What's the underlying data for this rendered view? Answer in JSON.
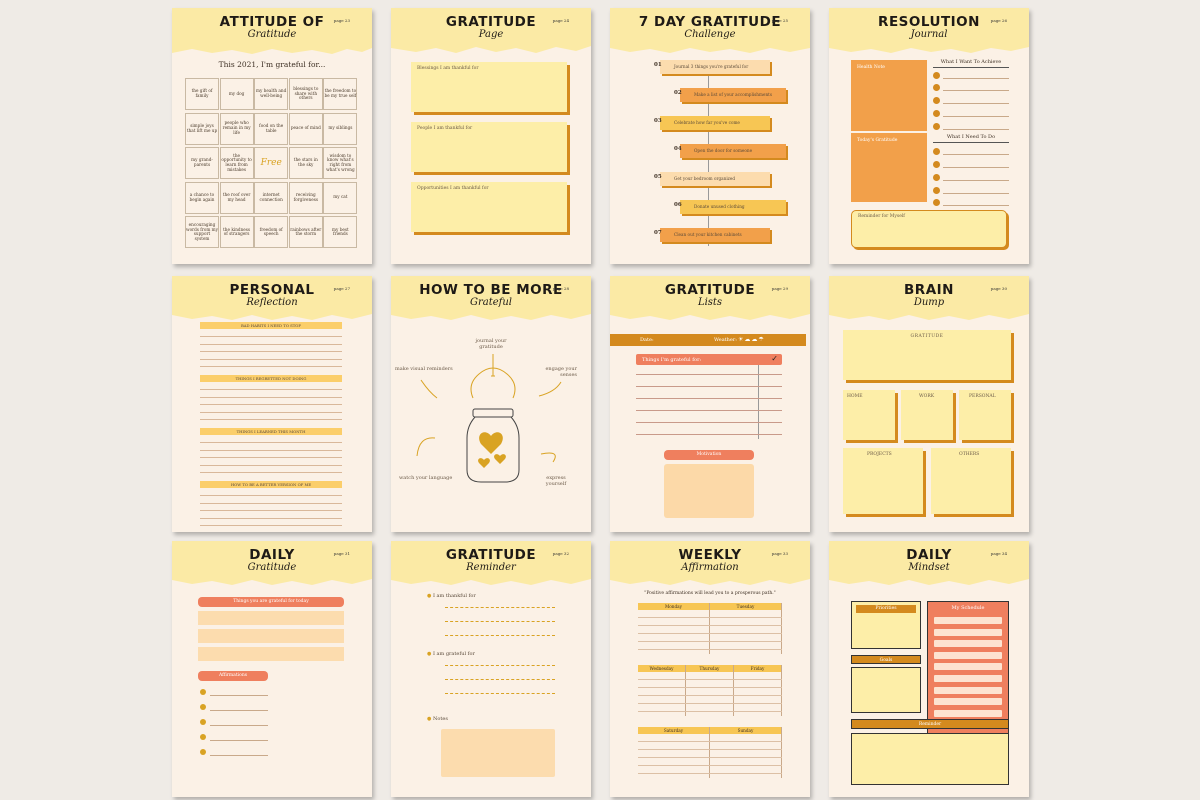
{
  "colors": {
    "header": "#fbeaa5",
    "bg": "#fbf1e6",
    "yellow": "#fdeea8",
    "orange": "#f2a04a",
    "coral": "#ef7f5e",
    "gold": "#d9a323",
    "brown": "#d48a1e"
  },
  "p1": {
    "t1": "ATTITUDE OF",
    "t2": "Gratitude",
    "pg": "page 23",
    "sub": "This 2021, I'm grateful for...",
    "cells": [
      "the gift of family",
      "my dog",
      "my health and well-being",
      "blessings to share with others",
      "the freedom to be my true self",
      "simple joys that lift me up",
      "people who remain in my life",
      "food on the table",
      "peace of mind",
      "my siblings",
      "my grand-parents",
      "the opportunity to learn from mistakes",
      "Free",
      "the stars in the sky",
      "wisdom to know what's right from what's wrong",
      "a chance to begin again",
      "the roof over my head",
      "internet connection",
      "receiving forgiveness",
      "my cat",
      "encouraging words from my support system",
      "the kindness of strangers",
      "freedom of speech",
      "rainbows after the storm",
      "my best friends"
    ]
  },
  "p2": {
    "t1": "GRATITUDE",
    "t2": "Page",
    "pg": "page 24",
    "boxes": [
      "Blessings I am thankful for",
      "People I am thankful for",
      "Opportunities I am thankful for"
    ]
  },
  "p3": {
    "t1": "7 DAY GRATITUDE",
    "t2": "Challenge",
    "pg": "page 25",
    "days": [
      {
        "n": "01",
        "t": "Journal 3 things you're grateful for"
      },
      {
        "n": "02",
        "t": "Make a list of your accomplishments"
      },
      {
        "n": "03",
        "t": "Celebrate how far you've come"
      },
      {
        "n": "04",
        "t": "Open the door for someone"
      },
      {
        "n": "05",
        "t": "Get your bedroom organized"
      },
      {
        "n": "06",
        "t": "Donate unused clothing"
      },
      {
        "n": "07",
        "t": "Clean out your kitchen cabinets"
      }
    ]
  },
  "p4": {
    "t1": "RESOLUTION",
    "t2": "Journal",
    "pg": "page 26",
    "health": "Health Note",
    "gratitude": "Today's Gratitude",
    "achieve": "What I Want To Achieve",
    "todo": "What I Need To Do",
    "reminder": "Reminder for Myself"
  },
  "p5": {
    "t1": "PERSONAL",
    "t2": "Reflection",
    "pg": "page 27",
    "sections": [
      "BAD HABITS I NEED TO STOP",
      "THINGS I REGRETTED NOT DOING",
      "THINGS I LEARNED THIS MONTH",
      "HOW TO BE A BETTER VERSION OF ME"
    ]
  },
  "p6": {
    "t1": "HOW TO BE MORE",
    "t2": "Grateful",
    "pg": "page 28",
    "tips": [
      "journal your gratitude",
      "make visual reminders",
      "engage your senses",
      "watch your language",
      "express yourself"
    ]
  },
  "p7": {
    "t1": "GRATITUDE",
    "t2": "Lists",
    "pg": "page 29",
    "date": "Date:",
    "weather": "Weather:",
    "things": "Things I'm grateful for:",
    "motivation": "Motivation"
  },
  "p8": {
    "t1": "BRAIN",
    "t2": "Dump",
    "pg": "page 30",
    "boxes": [
      "GRATITUDE",
      "HOME",
      "WORK",
      "PERSONAL",
      "PROJECTS",
      "OTHERS"
    ]
  },
  "p9": {
    "t1": "DAILY",
    "t2": "Gratitude",
    "pg": "page 31",
    "things": "Things you are grateful for today",
    "affirmations": "Affirmations"
  },
  "p10": {
    "t1": "GRATITUDE",
    "t2": "Reminder",
    "pg": "page 32",
    "items": [
      "I am thankful for",
      "I am grateful for",
      "Notes"
    ]
  },
  "p11": {
    "t1": "WEEKLY",
    "t2": "Affirmation",
    "pg": "page 33",
    "quote": "\"Positive affirmations will lead you to a prosperous path.\"",
    "days": [
      "Monday",
      "Tuesday",
      "Wednesday",
      "Thursday",
      "Friday",
      "Saturday",
      "Sunday"
    ]
  },
  "p12": {
    "t1": "DAILY",
    "t2": "Mindset",
    "pg": "page 34",
    "priorities": "Priorities",
    "schedule": "My Schedule",
    "goals": "Goals",
    "reminder": "Reminder"
  }
}
